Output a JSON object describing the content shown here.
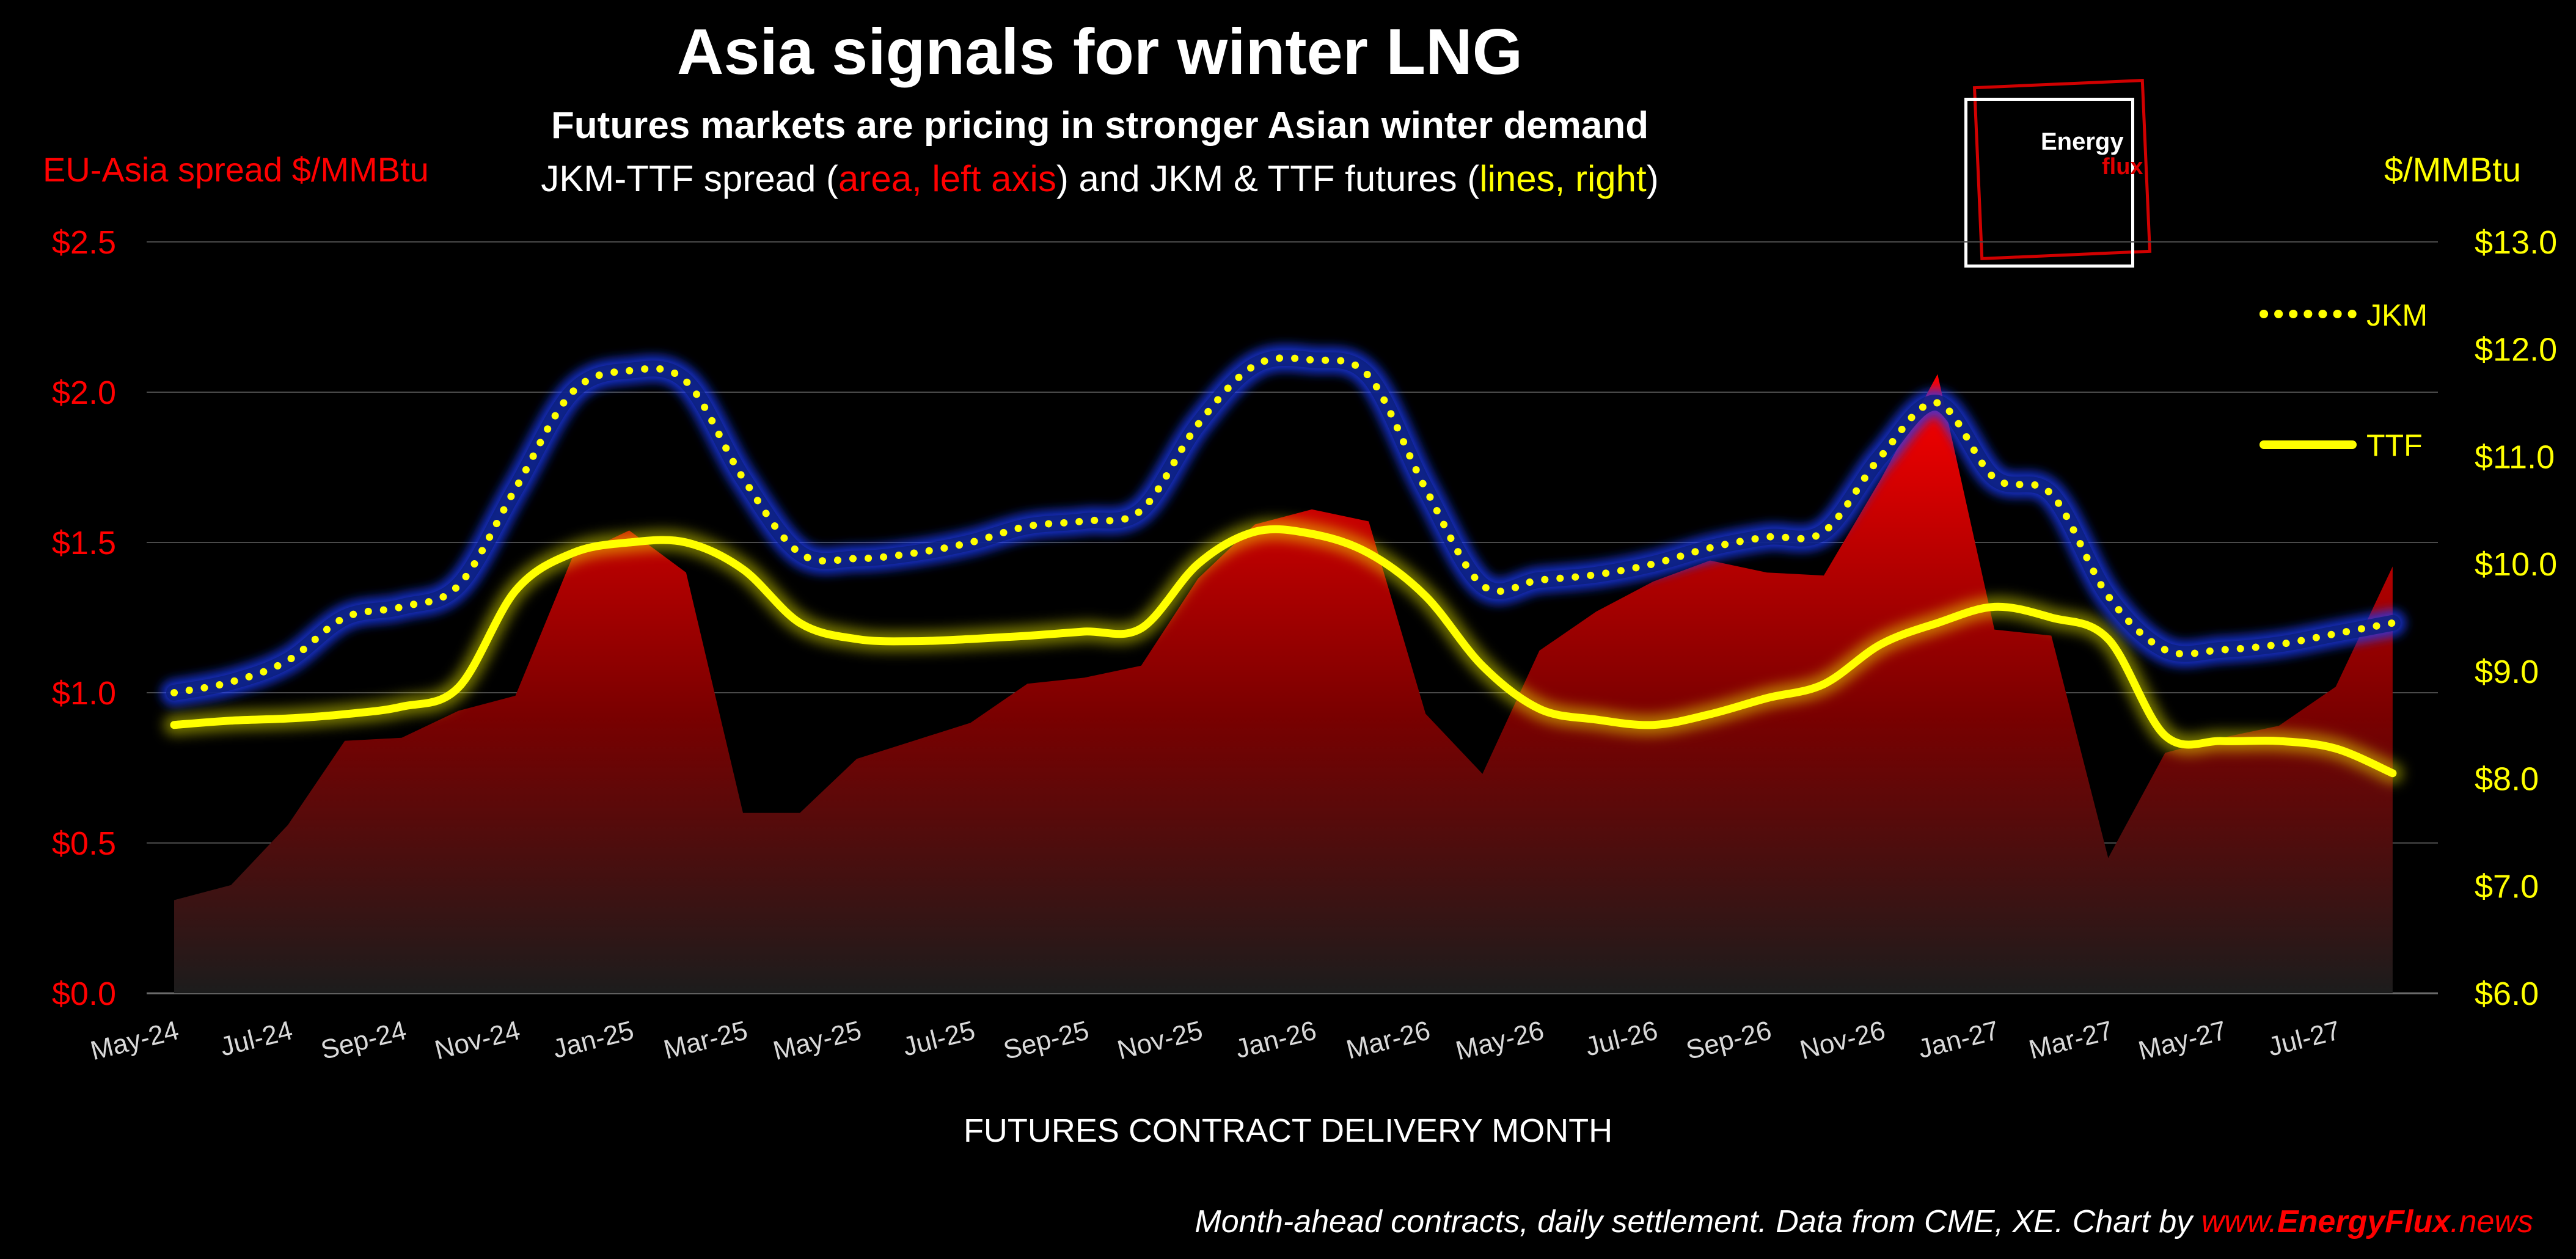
{
  "title": "Asia signals for winter LNG",
  "subtitle": "Futures markets are pricing in stronger Asian winter demand",
  "description": {
    "part1": "JKM-TTF spread (",
    "part2": "area, left axis",
    "part3": ") and JKM & TTF futures (",
    "part4": "lines, right",
    "part5": ")"
  },
  "left_axis_label": "EU-Asia spread $/MMBtu",
  "right_axis_label": "$/MMBtu",
  "x_axis_label": "FUTURES CONTRACT DELIVERY MONTH",
  "footer": {
    "text": "Month-ahead contracts, daily settlement. Data from CME, XE. Chart by ",
    "site_prefix": "www.",
    "site_brand": "EnergyFlux",
    "site_suffix": ".news"
  },
  "logo": {
    "line1": "Energy",
    "line2": "flux"
  },
  "colors": {
    "spread_area": "#ff0000",
    "jkm_line": "#ffff00",
    "jkm_glow": "#1a3cff",
    "ttf_line": "#ffff00",
    "left_axis": "#ff0000",
    "right_axis": "#ffff00",
    "background": "#000000"
  },
  "chart_data": {
    "type": "area",
    "x_tick_labels": [
      "May-24",
      "Jul-24",
      "Sep-24",
      "Nov-24",
      "Jan-25",
      "Mar-25",
      "May-25",
      "Jul-25",
      "Sep-25",
      "Nov-25",
      "Jan-26",
      "Mar-26",
      "May-26",
      "Jul-26",
      "Sep-26",
      "Nov-26",
      "Jan-27",
      "Mar-27",
      "May-27",
      "Jul-27"
    ],
    "categories": [
      "May-24",
      "Jun-24",
      "Jul-24",
      "Aug-24",
      "Sep-24",
      "Oct-24",
      "Nov-24",
      "Dec-24",
      "Jan-25",
      "Feb-25",
      "Mar-25",
      "Apr-25",
      "May-25",
      "Jun-25",
      "Jul-25",
      "Aug-25",
      "Sep-25",
      "Oct-25",
      "Nov-25",
      "Dec-25",
      "Jan-26",
      "Feb-26",
      "Mar-26",
      "Apr-26",
      "May-26",
      "Jun-26",
      "Jul-26",
      "Aug-26",
      "Sep-26",
      "Oct-26",
      "Nov-26",
      "Dec-26",
      "Jan-27",
      "Feb-27",
      "Mar-27",
      "Apr-27",
      "May-27",
      "Jun-27",
      "Jul-27",
      "Aug-27"
    ],
    "left_axis": {
      "ticks": [
        "$0.0",
        "$0.5",
        "$1.0",
        "$1.5",
        "$2.0",
        "$2.5"
      ],
      "ylim": [
        0,
        2.5
      ]
    },
    "right_axis": {
      "ticks": [
        "$6.0",
        "$7.0",
        "$8.0",
        "$9.0",
        "$10.0",
        "$11.0",
        "$12.0",
        "$13.0"
      ],
      "ylim": [
        6,
        13
      ]
    },
    "grid": true,
    "legend_placement": "right",
    "series": [
      {
        "name": "JKM-TTF spread",
        "type": "area",
        "axis": "left",
        "values": [
          0.31,
          0.36,
          0.56,
          0.84,
          0.85,
          0.94,
          0.99,
          1.45,
          1.54,
          1.4,
          0.6,
          0.6,
          0.78,
          0.84,
          0.9,
          1.03,
          1.05,
          1.09,
          1.38,
          1.56,
          1.61,
          1.57,
          0.93,
          0.73,
          1.14,
          1.27,
          1.37,
          1.44,
          1.4,
          1.39,
          1.71,
          2.06,
          1.21,
          1.19,
          0.45,
          0.8,
          0.85,
          0.89,
          1.02,
          1.42
        ]
      },
      {
        "name": "JKM",
        "type": "line",
        "style": "dotted",
        "axis": "right",
        "values": [
          8.8,
          8.9,
          9.1,
          9.5,
          9.6,
          9.8,
          10.7,
          11.6,
          11.8,
          11.7,
          10.8,
          10.1,
          10.05,
          10.1,
          10.2,
          10.35,
          10.4,
          10.5,
          11.3,
          11.85,
          11.9,
          11.75,
          10.7,
          9.8,
          9.85,
          9.9,
          10.0,
          10.15,
          10.25,
          10.3,
          11.0,
          11.5,
          10.8,
          10.65,
          9.7,
          9.2,
          9.2,
          9.25,
          9.35,
          9.45
        ]
      },
      {
        "name": "TTF",
        "type": "line",
        "style": "solid",
        "axis": "right",
        "values": [
          8.5,
          8.54,
          8.56,
          8.6,
          8.67,
          8.85,
          9.75,
          10.1,
          10.2,
          10.2,
          9.95,
          9.45,
          9.3,
          9.28,
          9.3,
          9.33,
          9.37,
          9.4,
          10.0,
          10.3,
          10.28,
          10.1,
          9.7,
          9.05,
          8.65,
          8.55,
          8.5,
          8.6,
          8.75,
          8.88,
          9.25,
          9.45,
          9.6,
          9.5,
          9.3,
          8.4,
          8.35,
          8.35,
          8.28,
          8.05
        ]
      }
    ]
  }
}
